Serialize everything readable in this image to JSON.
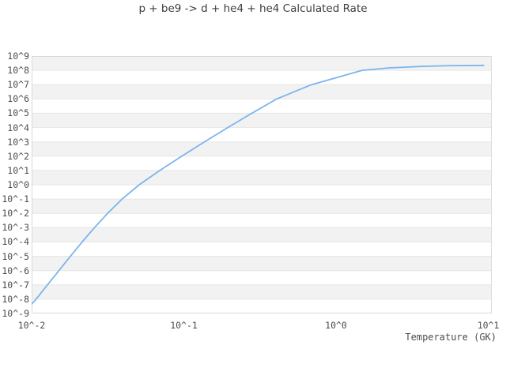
{
  "title": "p + be9 -> d + he4 + he4 Calculated Rate",
  "x_axis": {
    "label": "Temperature (GK)",
    "ticks": [
      "10^-2",
      "10^-1",
      "10^0",
      "10^1"
    ],
    "tick_log_values": [
      -2,
      -1,
      0,
      1
    ]
  },
  "y_axis": {
    "ticks": [
      "10^9",
      "10^8",
      "10^7",
      "10^6",
      "10^5",
      "10^4",
      "10^3",
      "10^2",
      "10^1",
      "10^0",
      "10^-1",
      "10^-2",
      "10^-3",
      "10^-4",
      "10^-5",
      "10^-6",
      "10^-7",
      "10^-8",
      "10^-9"
    ],
    "tick_log_values": [
      9,
      8,
      7,
      6,
      5,
      4,
      3,
      2,
      1,
      0,
      -1,
      -2,
      -3,
      -4,
      -5,
      -6,
      -7,
      -8,
      -9
    ]
  },
  "colors": {
    "line": "#7cb5ec",
    "band": "#f2f2f2",
    "gridline": "#e6e6e6",
    "plot_border": "#d9d9d9",
    "title_text": "#3d3d3d",
    "tick_text": "#4d4d4d",
    "background": "#ffffff"
  },
  "chart_data": {
    "type": "line",
    "title": "p + be9 -> d + he4 + he4 Calculated Rate",
    "xlabel": "Temperature (GK)",
    "ylabel": "",
    "x_scale": "log10",
    "y_scale": "log10",
    "xlim_log10": [
      -2,
      1.023
    ],
    "ylim_log10": [
      -9,
      9
    ],
    "grid": "horizontal decade gridlines with alternating gray bands, no vertical gridlines",
    "legend": "none",
    "series": [
      {
        "name": "calculated rate",
        "color": "#7cb5ec",
        "points_log10": [
          [
            -2.0,
            -8.35
          ],
          [
            -1.971,
            -8
          ],
          [
            -1.896,
            -7
          ],
          [
            -1.821,
            -6
          ],
          [
            -1.745,
            -5
          ],
          [
            -1.668,
            -4
          ],
          [
            -1.587,
            -3
          ],
          [
            -1.501,
            -2
          ],
          [
            -1.406,
            -1
          ],
          [
            -1.293,
            0
          ],
          [
            -1.158,
            1
          ],
          [
            -1.013,
            2
          ],
          [
            -0.865,
            3
          ],
          [
            -0.712,
            4
          ],
          [
            -0.553,
            5
          ],
          [
            -0.39,
            6
          ],
          [
            -0.161,
            7
          ],
          [
            0.171,
            8
          ],
          [
            0.35,
            8.17
          ],
          [
            0.55,
            8.27
          ],
          [
            0.75,
            8.33
          ],
          [
            0.97,
            8.35
          ]
        ]
      }
    ]
  }
}
